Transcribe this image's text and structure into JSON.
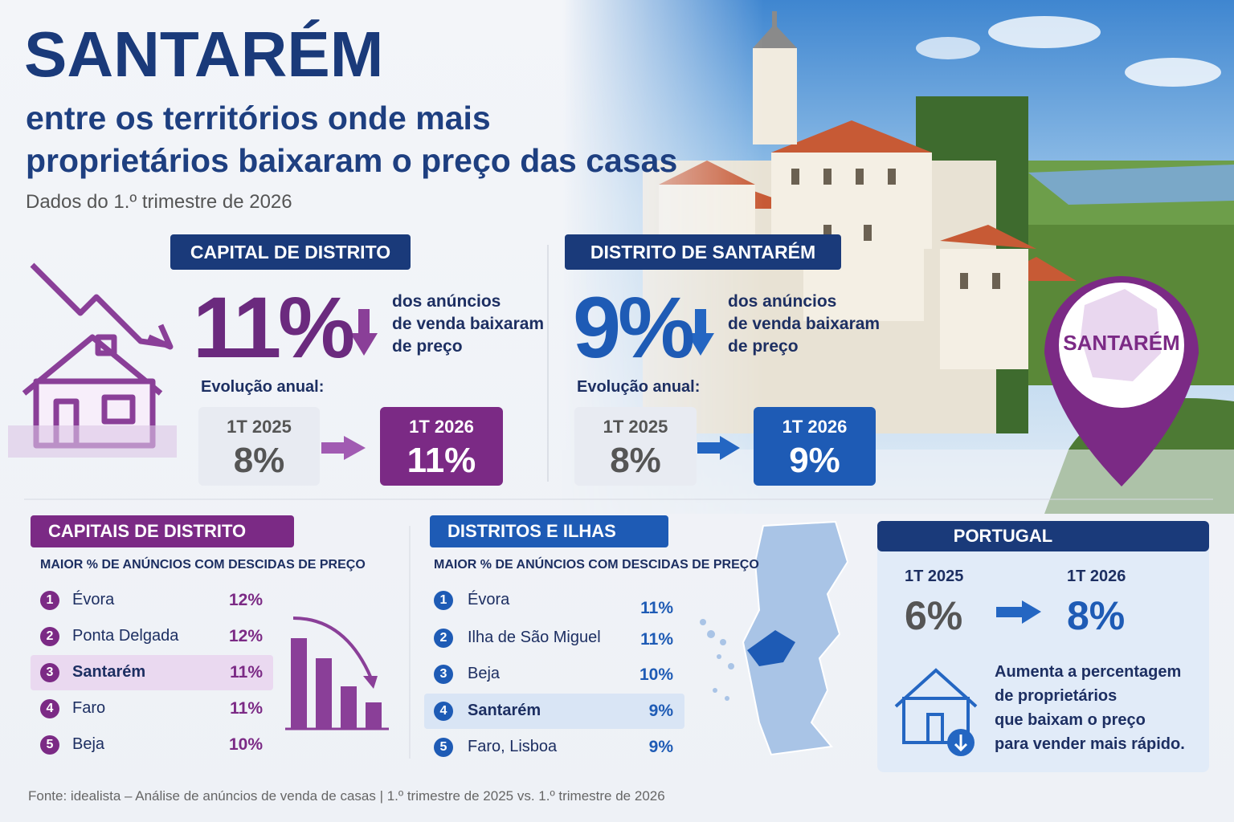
{
  "header": {
    "title": "SANTARÉM",
    "subtitle_lines": [
      "entre os territórios onde mais",
      "proprietários baixaram o preço das casas"
    ],
    "date": "Dados do 1.º trimestre de 2026"
  },
  "capital": {
    "label": "CAPITAL DE DISTRITO",
    "big": "11%",
    "desc_lines": [
      "dos anúncios",
      "de venda baixaram",
      "de preço"
    ],
    "evolution": "Evolução anual:",
    "from": {
      "period": "1T 2025",
      "value": "8%"
    },
    "to": {
      "period": "1T 2026",
      "value": "11%"
    }
  },
  "district": {
    "label": "DISTRITO DE SANTARÉM",
    "big": "9%",
    "desc_lines": [
      "dos anúncios",
      "de venda baixaram",
      "de preço"
    ],
    "evolution": "Evolução anual:",
    "from": {
      "period": "1T 2025",
      "value": "8%"
    },
    "to": {
      "period": "1T 2026",
      "value": "9%"
    }
  },
  "pin_label": "SANTARÉM",
  "ranking_capitals": {
    "label": "CAPITAIS DE DISTRITO",
    "subtitle": "MAIOR % DE ANÚNCIOS COM DESCIDAS DE PREÇO",
    "rows": [
      {
        "rank": "1",
        "name": "Évora",
        "value": "12%"
      },
      {
        "rank": "2",
        "name": "Ponta Delgada",
        "value": "12%"
      },
      {
        "rank": "3",
        "name": "Santarém",
        "value": "11%"
      },
      {
        "rank": "4",
        "name": "Faro",
        "value": "11%"
      },
      {
        "rank": "5",
        "name": "Beja",
        "value": "10%"
      }
    ]
  },
  "ranking_districts": {
    "label": "DISTRITOS E ILHAS",
    "subtitle": "MAIOR % DE ANÚNCIOS COM DESCIDAS DE PREÇO",
    "rows": [
      {
        "rank": "1",
        "name": "Évora",
        "value": "11%"
      },
      {
        "rank": "2",
        "name": "Ilha de São Miguel",
        "value": "11%"
      },
      {
        "rank": "3",
        "name": "Beja",
        "value": "10%"
      },
      {
        "rank": "4",
        "name": "Santarém",
        "value": "9%"
      },
      {
        "rank": "5",
        "name": "Faro, Lisboa",
        "value": "9%"
      }
    ]
  },
  "portugal": {
    "label": "PORTUGAL",
    "from": {
      "period": "1T 2025",
      "value": "6%"
    },
    "to": {
      "period": "1T 2026",
      "value": "8%"
    },
    "note_lines": [
      "Aumenta a percentagem",
      "de proprietários",
      "que baixam o preço",
      "para vender mais rápido."
    ]
  },
  "source": "Fonte: idealista – Análise de anúncios de venda de casas | 1.º trimestre de 2025 vs. 1.º trimestre de 2026"
}
